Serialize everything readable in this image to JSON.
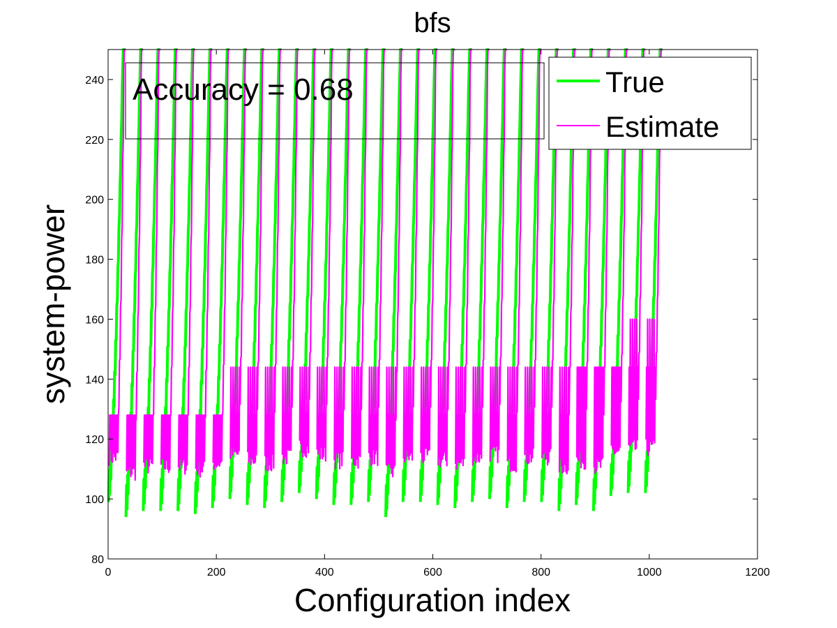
{
  "chart_data": {
    "type": "line",
    "title": "bfs",
    "xlabel": "Configuration index",
    "ylabel": "system-power",
    "xlim": [
      0,
      1200
    ],
    "ylim": [
      80,
      250
    ],
    "xticks": [
      0,
      200,
      400,
      600,
      800,
      1000,
      1200
    ],
    "yticks": [
      80,
      100,
      120,
      140,
      160,
      180,
      200,
      220,
      240
    ],
    "grid": false,
    "legend_position": "top-right",
    "annotation": "Accuracy = 0.68",
    "series": [
      {
        "name": "True",
        "color": "#00ff00",
        "pattern": "sawtooth",
        "period": 32,
        "x_range": [
          1,
          1024
        ],
        "cycle_start_values": [
          103,
          98,
          100,
          100,
          100,
          99,
          101,
          104,
          102,
          101,
          103,
          106,
          104,
          102,
          102,
          103,
          98,
          103,
          103,
          102,
          101,
          103,
          104,
          101,
          103,
          103,
          100,
          102,
          100,
          105,
          106,
          106
        ],
        "cycle_peak_value": 250
      },
      {
        "name": "Estimate",
        "color": "#ff00ff",
        "pattern": "sawtooth with plateaus",
        "period": 32,
        "x_range": [
          1,
          1024
        ],
        "plateau_levels": [
          128,
          144,
          160
        ],
        "cycle_peak_value": 250
      }
    ]
  },
  "colors": {
    "true": "#00ff00",
    "estimate": "#ff00ff",
    "axes": "#000000",
    "background": "#ffffff"
  }
}
